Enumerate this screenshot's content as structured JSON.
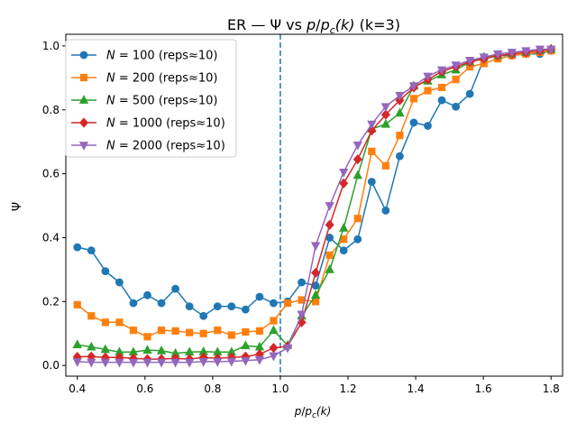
{
  "chart_data": {
    "type": "line",
    "title": "ER — Ψ vs p/p_c(k)  (k=3)",
    "title_parts": {
      "prefix": "ER — Ψ vs ",
      "p": "p",
      "slash": "/",
      "pc": "p",
      "c": "c",
      "k": "(k)",
      "suffix": "  (k=3)"
    },
    "xlabel": "p/p_c(k)",
    "xlabel_parts": {
      "p": "p",
      "slash": "/",
      "pc": "p",
      "c": "c",
      "k": "(k)"
    },
    "ylabel": "Ψ",
    "xlim": [
      0.366,
      1.834
    ],
    "ylim": [
      -0.0335,
      1.0365
    ],
    "xticks": [
      "0.4",
      "0.6",
      "0.8",
      "1.0",
      "1.2",
      "1.4",
      "1.6",
      "1.8"
    ],
    "yticks": [
      "0.0",
      "0.2",
      "0.4",
      "0.6",
      "0.8",
      "1.0"
    ],
    "grid": false,
    "legend_position": "top-left",
    "vline": {
      "x": 1.0,
      "color": "#1f77b4",
      "style": "dashed"
    },
    "x": [
      0.4,
      0.4414,
      0.4829,
      0.5243,
      0.5657,
      0.6071,
      0.6486,
      0.69,
      0.7314,
      0.7729,
      0.8143,
      0.8557,
      0.8971,
      0.9386,
      0.98,
      1.0214,
      1.0629,
      1.1043,
      1.1457,
      1.1871,
      1.2286,
      1.27,
      1.3114,
      1.3529,
      1.3943,
      1.4357,
      1.4771,
      1.5186,
      1.56,
      1.6014,
      1.6429,
      1.6843,
      1.7257,
      1.7671,
      1.8
    ],
    "series": [
      {
        "name_prefix": "N",
        "name_suffix": " = 100 (reps≈10)",
        "color": "#1f77b4",
        "marker": "circle",
        "values": [
          0.37,
          0.36,
          0.295,
          0.26,
          0.195,
          0.22,
          0.195,
          0.24,
          0.185,
          0.155,
          0.185,
          0.185,
          0.175,
          0.215,
          0.195,
          0.2,
          0.26,
          0.25,
          0.4,
          0.36,
          0.395,
          0.575,
          0.485,
          0.655,
          0.76,
          0.75,
          0.83,
          0.81,
          0.85,
          0.96,
          0.97,
          0.97,
          0.975,
          0.975,
          0.985
        ]
      },
      {
        "name_prefix": "N",
        "name_suffix": " = 200 (reps≈10)",
        "color": "#ff7f0e",
        "marker": "square",
        "values": [
          0.19,
          0.155,
          0.135,
          0.135,
          0.11,
          0.09,
          0.11,
          0.108,
          0.103,
          0.1,
          0.11,
          0.095,
          0.105,
          0.108,
          0.14,
          0.195,
          0.205,
          0.2,
          0.345,
          0.395,
          0.46,
          0.67,
          0.625,
          0.72,
          0.835,
          0.86,
          0.87,
          0.895,
          0.935,
          0.945,
          0.96,
          0.97,
          0.975,
          0.98,
          0.985
        ]
      },
      {
        "name_prefix": "N",
        "name_suffix": " = 500 (reps≈10)",
        "color": "#2ca02c",
        "marker": "triangle-up",
        "values": [
          0.065,
          0.058,
          0.05,
          0.042,
          0.042,
          0.048,
          0.046,
          0.038,
          0.042,
          0.043,
          0.042,
          0.042,
          0.062,
          0.058,
          0.11,
          0.063,
          0.155,
          0.22,
          0.3,
          0.43,
          0.595,
          0.74,
          0.755,
          0.79,
          0.875,
          0.89,
          0.91,
          0.925,
          0.95,
          0.965,
          0.97,
          0.975,
          0.98,
          0.985,
          0.99
        ]
      },
      {
        "name_prefix": "N",
        "name_suffix": " = 1000 (reps≈10)",
        "color": "#d62728",
        "marker": "diamond",
        "values": [
          0.027,
          0.028,
          0.025,
          0.025,
          0.022,
          0.02,
          0.02,
          0.022,
          0.02,
          0.025,
          0.022,
          0.025,
          0.028,
          0.035,
          0.055,
          0.06,
          0.135,
          0.29,
          0.44,
          0.57,
          0.645,
          0.735,
          0.785,
          0.83,
          0.87,
          0.895,
          0.92,
          0.935,
          0.95,
          0.96,
          0.97,
          0.975,
          0.98,
          0.985,
          0.99
        ]
      },
      {
        "name_prefix": "N",
        "name_suffix": " = 2000 (reps≈10)",
        "color": "#9467bd",
        "marker": "triangle-down",
        "values": [
          0.012,
          0.01,
          0.01,
          0.01,
          0.01,
          0.01,
          0.01,
          0.01,
          0.01,
          0.012,
          0.012,
          0.013,
          0.015,
          0.018,
          0.03,
          0.055,
          0.16,
          0.375,
          0.5,
          0.605,
          0.69,
          0.755,
          0.81,
          0.845,
          0.875,
          0.905,
          0.925,
          0.94,
          0.955,
          0.965,
          0.975,
          0.98,
          0.985,
          0.99,
          0.99
        ]
      }
    ]
  }
}
